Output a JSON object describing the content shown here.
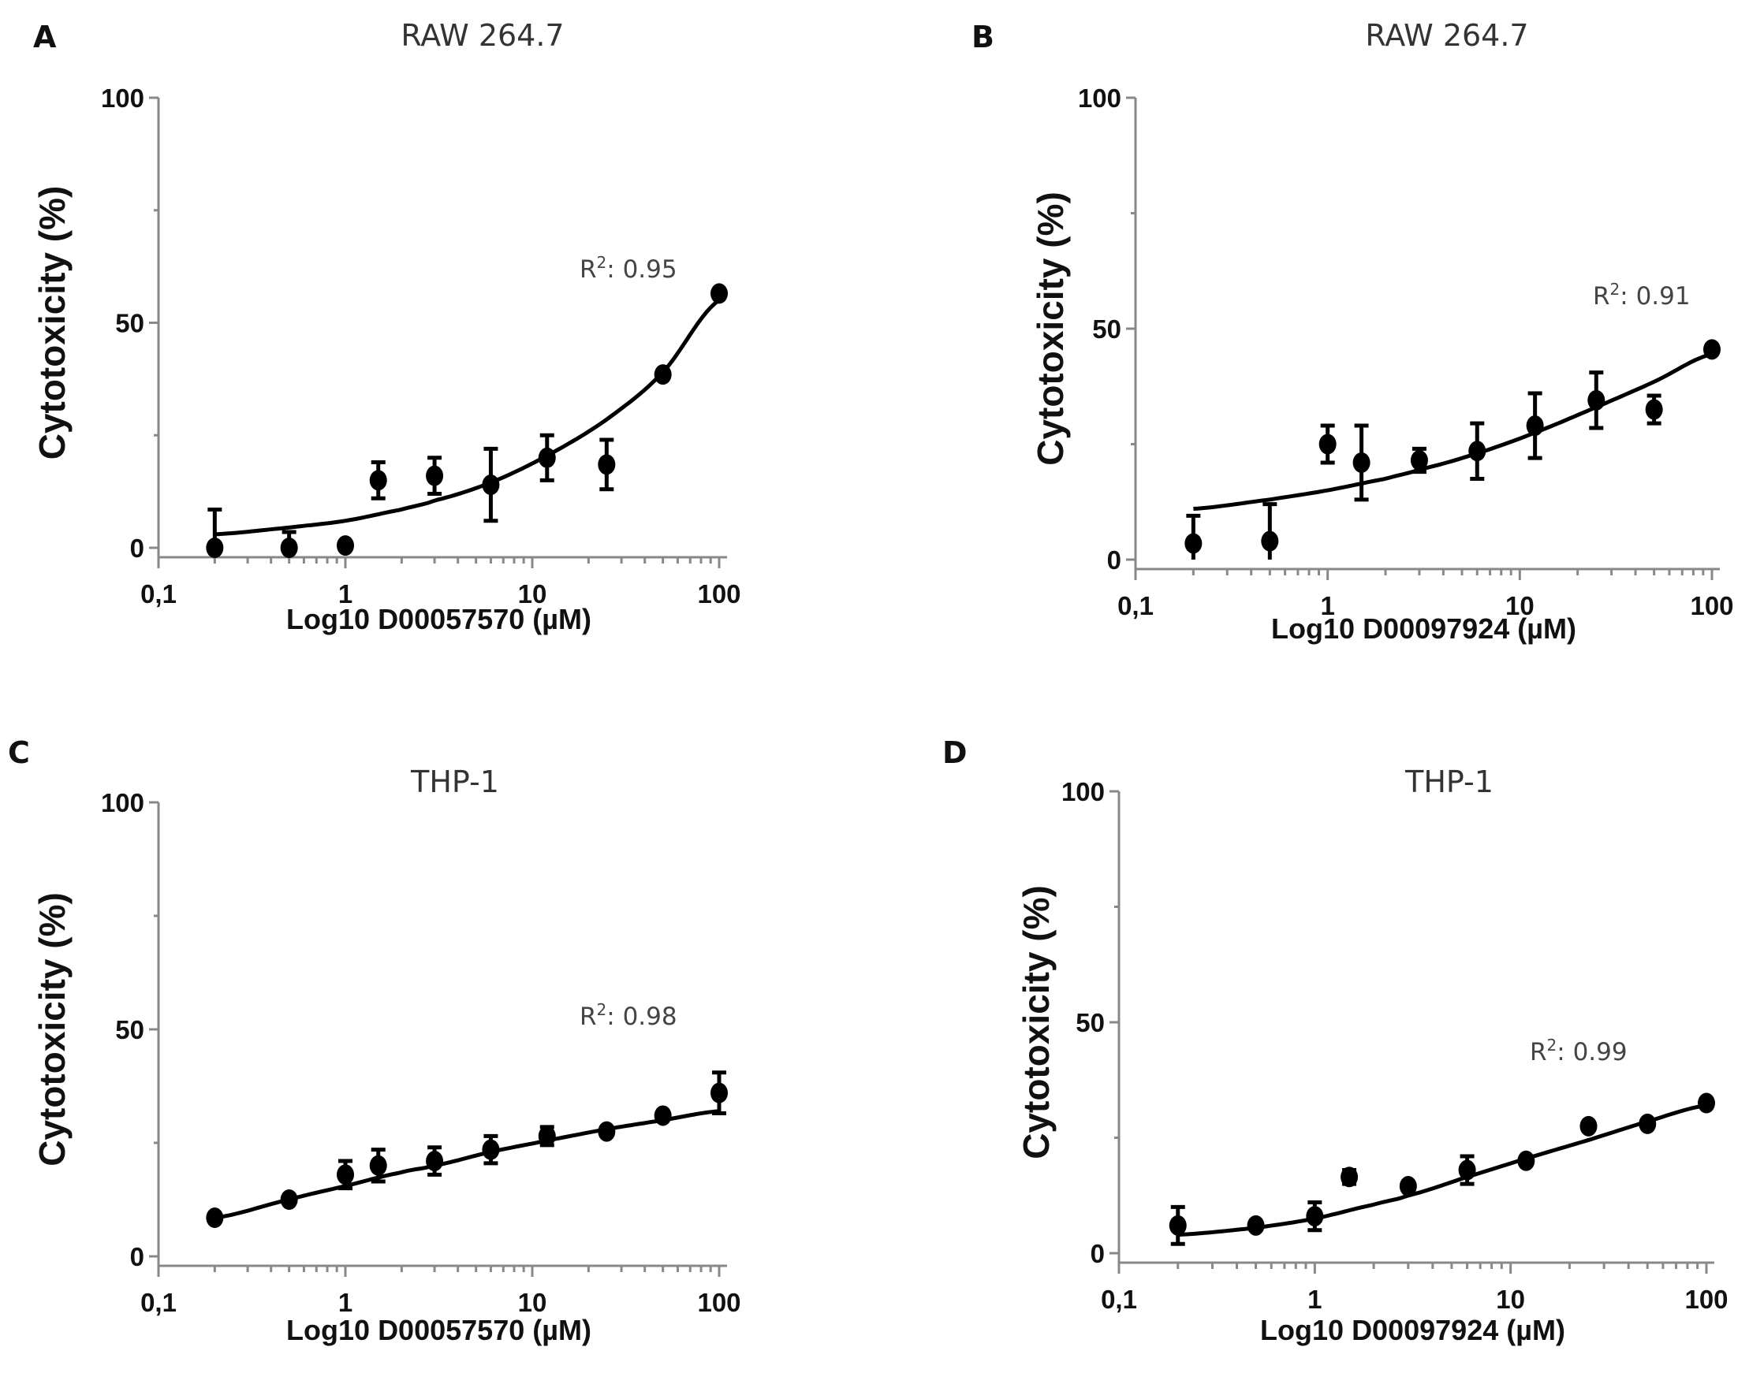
{
  "chart_data": [
    {
      "id": "A",
      "type": "scatter",
      "panel_label": "A",
      "title": "RAW 264.7",
      "xlabel": "Log10 D00057570 (µM)",
      "ylabel": "Cytotoxicity (%)",
      "xscale": "log",
      "xlim": [
        0.1,
        100
      ],
      "ylim": [
        0,
        100
      ],
      "xticks": [
        0.1,
        1,
        10,
        100
      ],
      "xtick_labels": [
        "0,1",
        "1",
        "10",
        "100"
      ],
      "yticks": [
        0,
        50,
        100
      ],
      "ytick_labels": [
        "0",
        "50",
        "100"
      ],
      "annotation": {
        "text": "R",
        "sup": "2",
        "value": ": 0.95"
      },
      "grid": false,
      "series": [
        {
          "name": "D00057570",
          "x": [
            0.2,
            0.5,
            1,
            1.5,
            3,
            6,
            12,
            25,
            50,
            100
          ],
          "y": [
            0,
            0,
            0.5,
            15,
            16,
            14,
            20,
            18.5,
            38.5,
            56.5
          ],
          "yerr": [
            8.5,
            3.5,
            0.5,
            4,
            4,
            8,
            5,
            5.5,
            0.5,
            0.5
          ]
        }
      ],
      "fit": {
        "x": [
          0.2,
          0.5,
          1,
          2,
          3,
          6,
          12,
          25,
          50,
          100
        ],
        "y": [
          3,
          4.5,
          6,
          8.5,
          10.5,
          14.5,
          20.5,
          28.5,
          39,
          55
        ]
      }
    },
    {
      "id": "B",
      "type": "scatter",
      "panel_label": "B",
      "title": "RAW 264.7",
      "xlabel": "Log10 D00097924 (µM)",
      "ylabel": "Cytotoxicity (%)",
      "xscale": "log",
      "xlim": [
        0.1,
        100
      ],
      "ylim": [
        0,
        100
      ],
      "xticks": [
        0.1,
        1,
        10,
        100
      ],
      "xtick_labels": [
        "0,1",
        "1",
        "10",
        "100"
      ],
      "yticks": [
        0,
        50,
        100
      ],
      "ytick_labels": [
        "0",
        "50",
        "100"
      ],
      "annotation": {
        "text": "R",
        "sup": "2",
        "value": ": 0.91"
      },
      "grid": false,
      "series": [
        {
          "name": "D00097924",
          "x": [
            0.2,
            0.5,
            1,
            1.5,
            3,
            6,
            12,
            25,
            50,
            100
          ],
          "y": [
            3.5,
            4,
            25,
            21,
            21.5,
            23.5,
            29,
            34.5,
            32.5,
            45.5
          ],
          "yerr": [
            6,
            8,
            4,
            8,
            2.5,
            6,
            7,
            6,
            3,
            0.5
          ]
        }
      ],
      "fit": {
        "x": [
          0.2,
          0.5,
          1,
          2,
          3,
          6,
          12,
          25,
          50,
          100
        ],
        "y": [
          11,
          13,
          15,
          17.5,
          19.5,
          23,
          27.5,
          33,
          38.5,
          44.5
        ]
      }
    },
    {
      "id": "C",
      "type": "scatter",
      "panel_label": "C",
      "title": "THP-1",
      "xlabel": "Log10 D00057570 (µM)",
      "ylabel": "Cytotoxicity (%)",
      "xscale": "log",
      "xlim": [
        0.1,
        100
      ],
      "ylim": [
        0,
        100
      ],
      "xticks": [
        0.1,
        1,
        10,
        100
      ],
      "xtick_labels": [
        "0,1",
        "1",
        "10",
        "100"
      ],
      "yticks": [
        0,
        50,
        100
      ],
      "ytick_labels": [
        "0",
        "50",
        "100"
      ],
      "annotation": {
        "text": "R",
        "sup": "2",
        "value": ": 0.98"
      },
      "grid": false,
      "series": [
        {
          "name": "D00057570",
          "x": [
            0.2,
            0.5,
            1,
            1.5,
            3,
            6,
            12,
            25,
            50,
            100
          ],
          "y": [
            8.5,
            12.5,
            18,
            20,
            21,
            23.5,
            26.5,
            27.5,
            31,
            36
          ],
          "yerr": [
            1,
            1,
            3,
            3.5,
            3,
            3,
            2,
            1,
            1,
            4.5
          ]
        }
      ],
      "fit": {
        "x": [
          0.2,
          0.5,
          1,
          2,
          3,
          6,
          12,
          25,
          50,
          100
        ],
        "y": [
          8.5,
          12.5,
          15.5,
          18.5,
          20,
          23,
          25.5,
          28,
          30,
          32
        ]
      }
    },
    {
      "id": "D",
      "type": "scatter",
      "panel_label": "D",
      "title": "THP-1",
      "xlabel": "Log10 D00097924 (µM)",
      "ylabel": "Cytotoxicity (%)",
      "xscale": "log",
      "xlim": [
        0.1,
        100
      ],
      "ylim": [
        0,
        100
      ],
      "xticks": [
        0.1,
        1,
        10,
        100
      ],
      "xtick_labels": [
        "0,1",
        "1",
        "10",
        "100"
      ],
      "yticks": [
        0,
        50,
        100
      ],
      "ytick_labels": [
        "0",
        "50",
        "100"
      ],
      "annotation": {
        "text": "R",
        "sup": "2",
        "value": ": 0.99"
      },
      "grid": false,
      "series": [
        {
          "name": "D00097924",
          "x": [
            0.2,
            0.5,
            1,
            1.5,
            3,
            6,
            12,
            25,
            50,
            100
          ],
          "y": [
            6,
            6,
            8,
            16.5,
            14.5,
            18,
            20,
            27.5,
            28,
            32.5
          ],
          "yerr": [
            4,
            1,
            3,
            1.5,
            1,
            3,
            1,
            1,
            1,
            1
          ]
        }
      ],
      "fit": {
        "x": [
          0.2,
          0.5,
          1,
          2,
          3,
          6,
          12,
          25,
          50,
          100
        ],
        "y": [
          4,
          5.5,
          7.5,
          10.5,
          12.5,
          16.5,
          20.5,
          24.5,
          28.5,
          32
        ]
      }
    }
  ]
}
